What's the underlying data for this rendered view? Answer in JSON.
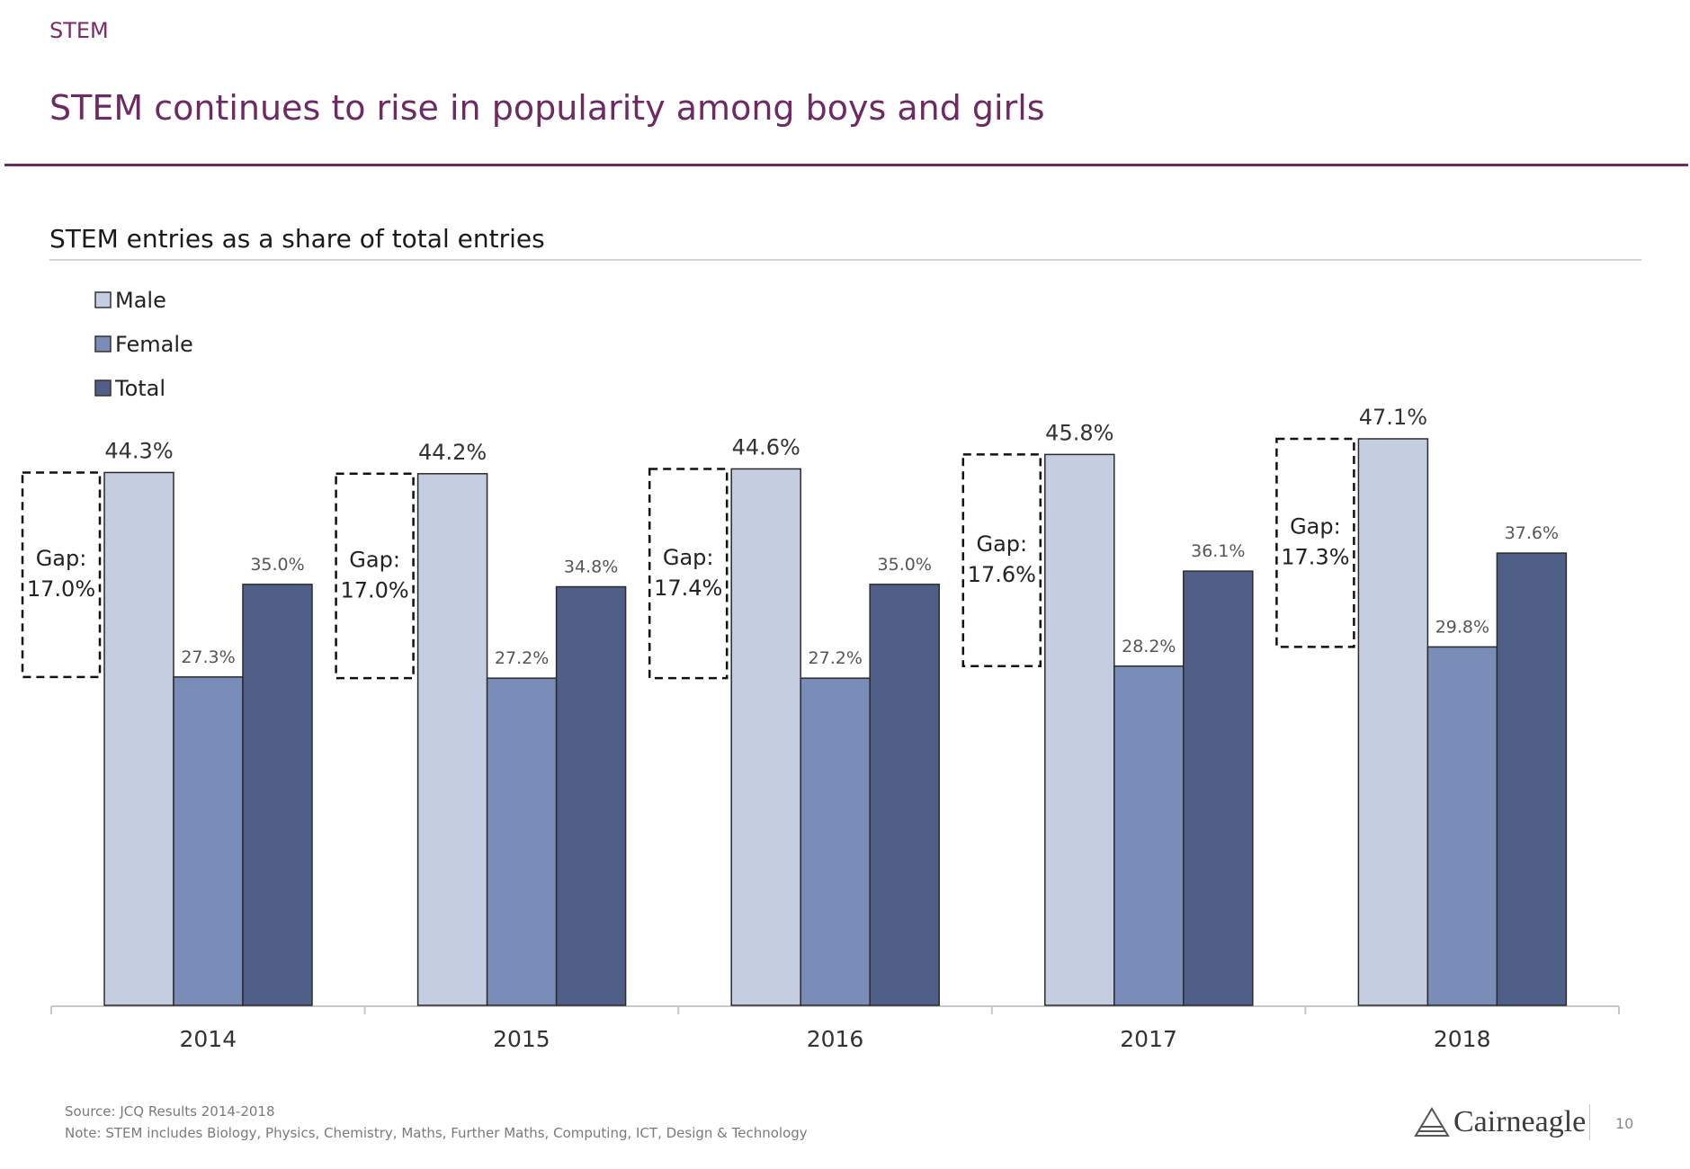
{
  "header": {
    "section": "STEM",
    "title": "STEM continues to rise in popularity among boys and girls"
  },
  "chart_heading": "STEM entries as a share of total entries",
  "chart_data": {
    "type": "bar",
    "title": "STEM entries as a share of total entries",
    "categories": [
      "2014",
      "2015",
      "2016",
      "2017",
      "2018"
    ],
    "series": [
      {
        "name": "Male",
        "values": [
          44.3,
          44.2,
          44.6,
          45.8,
          47.1
        ],
        "labels": [
          "44.3%",
          "44.2%",
          "44.6%",
          "45.8%",
          "47.1%"
        ],
        "color": "#c5cde0"
      },
      {
        "name": "Female",
        "values": [
          27.3,
          27.2,
          27.2,
          28.2,
          29.8
        ],
        "labels": [
          "27.3%",
          "27.2%",
          "27.2%",
          "28.2%",
          "29.8%"
        ],
        "color": "#7a8db8"
      },
      {
        "name": "Total",
        "values": [
          35.0,
          34.8,
          35.0,
          36.1,
          37.6
        ],
        "labels": [
          "35.0%",
          "34.8%",
          "35.0%",
          "36.1%",
          "37.6%"
        ],
        "color": "#4f5f88"
      }
    ],
    "gap_label": "Gap:",
    "gaps": [
      "17.0%",
      "17.0%",
      "17.4%",
      "17.6%",
      "17.3%"
    ],
    "ylim": [
      0,
      47.1
    ],
    "legend_position": "top-left",
    "grid": false
  },
  "footer": {
    "source": "Source: JCQ Results 2014-2018",
    "note": "Note: STEM includes Biology, Physics, Chemistry, Maths, Further Maths, Computing, ICT, Design & Technology",
    "logo_text": "Cairneagle",
    "page_number": "10"
  }
}
